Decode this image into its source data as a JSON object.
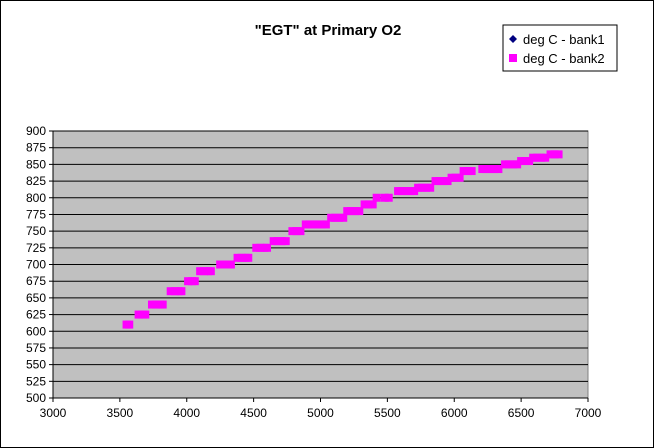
{
  "chart_data": {
    "type": "scatter",
    "title": "\"EGT\" at Primary O2",
    "xlabel": "",
    "ylabel": "",
    "xlim": [
      3000,
      7000
    ],
    "ylim": [
      500,
      900
    ],
    "xticks": [
      3000,
      3500,
      4000,
      4500,
      5000,
      5500,
      6000,
      6500,
      7000
    ],
    "yticks": [
      500,
      525,
      550,
      575,
      600,
      625,
      650,
      675,
      700,
      725,
      750,
      775,
      800,
      825,
      850,
      875,
      900
    ],
    "grid": "horizontal",
    "legend_position": "top-right",
    "plot_area_color": "#c0c0c0",
    "series": [
      {
        "name": "deg C - bank1",
        "color": "#000080",
        "marker": "diamond",
        "points": []
      },
      {
        "name": "deg C - bank2",
        "color": "#ff00ff",
        "marker": "square",
        "points": [
          [
            3550,
            610
          ],
          [
            3570,
            610
          ],
          [
            3640,
            625
          ],
          [
            3670,
            625
          ],
          [
            3690,
            625
          ],
          [
            3740,
            640
          ],
          [
            3770,
            640
          ],
          [
            3800,
            640
          ],
          [
            3820,
            640
          ],
          [
            3880,
            660
          ],
          [
            3910,
            660
          ],
          [
            3940,
            660
          ],
          [
            3960,
            660
          ],
          [
            4010,
            675
          ],
          [
            4040,
            675
          ],
          [
            4060,
            675
          ],
          [
            4100,
            690
          ],
          [
            4130,
            690
          ],
          [
            4160,
            690
          ],
          [
            4180,
            690
          ],
          [
            4250,
            700
          ],
          [
            4280,
            700
          ],
          [
            4300,
            700
          ],
          [
            4330,
            700
          ],
          [
            4380,
            710
          ],
          [
            4410,
            710
          ],
          [
            4440,
            710
          ],
          [
            4460,
            710
          ],
          [
            4520,
            725
          ],
          [
            4550,
            725
          ],
          [
            4580,
            725
          ],
          [
            4600,
            725
          ],
          [
            4650,
            735
          ],
          [
            4680,
            735
          ],
          [
            4710,
            735
          ],
          [
            4740,
            735
          ],
          [
            4790,
            750
          ],
          [
            4820,
            750
          ],
          [
            4850,
            750
          ],
          [
            4890,
            760
          ],
          [
            4920,
            760
          ],
          [
            4950,
            760
          ],
          [
            4980,
            760
          ],
          [
            5010,
            760
          ],
          [
            5040,
            760
          ],
          [
            5080,
            770
          ],
          [
            5110,
            770
          ],
          [
            5140,
            770
          ],
          [
            5170,
            770
          ],
          [
            5200,
            780
          ],
          [
            5230,
            780
          ],
          [
            5260,
            780
          ],
          [
            5290,
            780
          ],
          [
            5330,
            790
          ],
          [
            5360,
            790
          ],
          [
            5390,
            790
          ],
          [
            5420,
            800
          ],
          [
            5480,
            800
          ],
          [
            5510,
            800
          ],
          [
            5580,
            810
          ],
          [
            5610,
            810
          ],
          [
            5640,
            810
          ],
          [
            5670,
            810
          ],
          [
            5700,
            810
          ],
          [
            5730,
            815
          ],
          [
            5760,
            815
          ],
          [
            5790,
            815
          ],
          [
            5820,
            815
          ],
          [
            5860,
            825
          ],
          [
            5890,
            825
          ],
          [
            5920,
            825
          ],
          [
            5950,
            825
          ],
          [
            5980,
            830
          ],
          [
            6010,
            830
          ],
          [
            6040,
            830
          ],
          [
            6070,
            840
          ],
          [
            6100,
            840
          ],
          [
            6130,
            840
          ],
          [
            6210,
            843
          ],
          [
            6240,
            843
          ],
          [
            6270,
            843
          ],
          [
            6300,
            843
          ],
          [
            6330,
            843
          ],
          [
            6380,
            850
          ],
          [
            6410,
            850
          ],
          [
            6440,
            850
          ],
          [
            6470,
            850
          ],
          [
            6500,
            855
          ],
          [
            6530,
            855
          ],
          [
            6560,
            855
          ],
          [
            6590,
            860
          ],
          [
            6620,
            860
          ],
          [
            6650,
            860
          ],
          [
            6680,
            860
          ],
          [
            6720,
            865
          ],
          [
            6750,
            865
          ],
          [
            6780,
            865
          ]
        ]
      }
    ]
  }
}
